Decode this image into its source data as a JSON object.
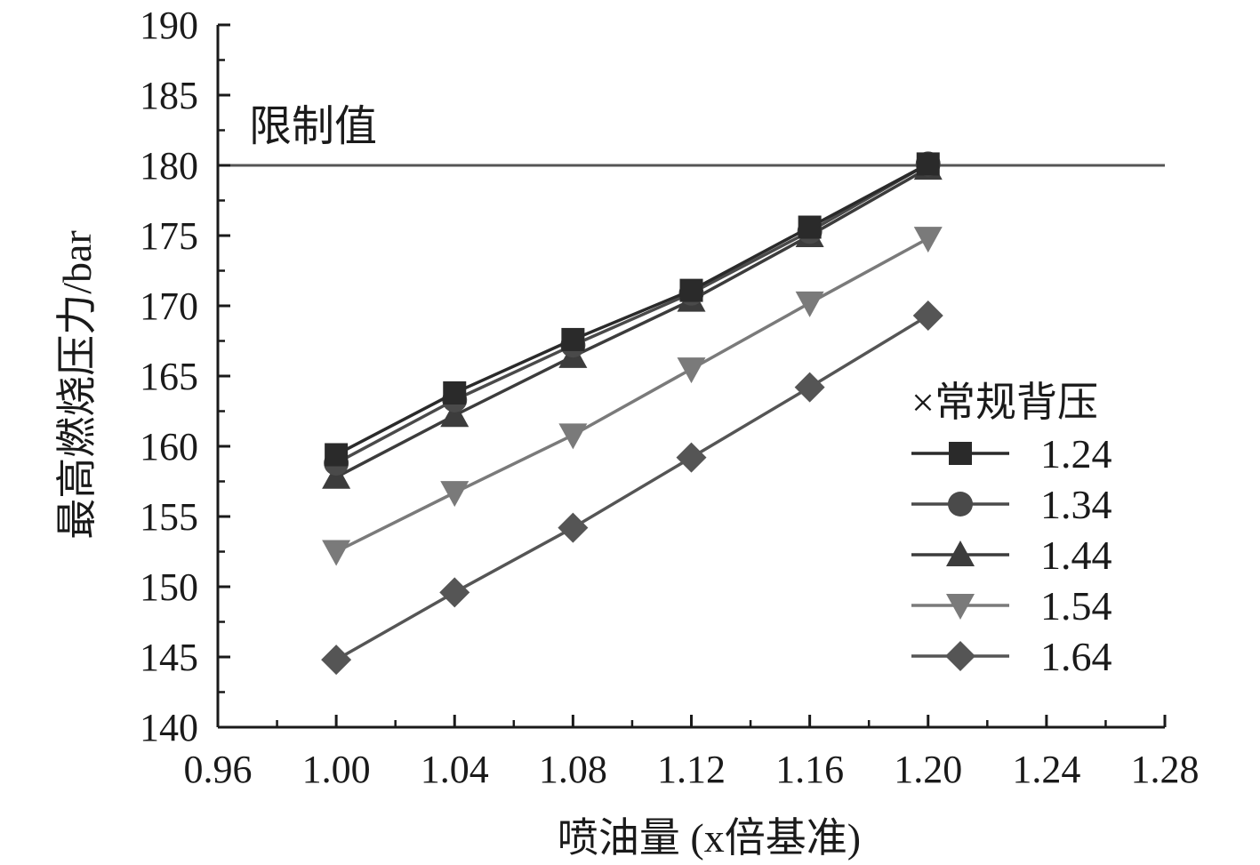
{
  "chart_data": {
    "type": "line",
    "xlabel": "喷油量 (x倍基准)",
    "ylabel": "最高燃烧压力/bar",
    "xlim": [
      0.96,
      1.28
    ],
    "ylim": [
      140,
      190
    ],
    "xticks": [
      "0.96",
      "1.00",
      "1.04",
      "1.08",
      "1.12",
      "1.16",
      "1.20",
      "1.24",
      "1.28"
    ],
    "yticks": [
      "140",
      "145",
      "150",
      "155",
      "160",
      "165",
      "170",
      "175",
      "180",
      "185",
      "190"
    ],
    "grid": false,
    "legend_title": "×常规背压",
    "legend_position": "right",
    "reference_line": {
      "y": 180,
      "label": "限制值",
      "color": "#555555"
    },
    "x": [
      1.0,
      1.04,
      1.08,
      1.12,
      1.16,
      1.2
    ],
    "series": [
      {
        "name": "1.24",
        "marker": "square",
        "color": "#2a2a2a",
        "values": [
          159.4,
          163.8,
          167.6,
          171.1,
          175.6,
          180.1
        ]
      },
      {
        "name": "1.34",
        "marker": "circle",
        "color": "#4a4a4a",
        "values": [
          158.8,
          163.3,
          167.2,
          170.9,
          175.3,
          180.1
        ]
      },
      {
        "name": "1.44",
        "marker": "triangle-up",
        "color": "#3c3c3c",
        "values": [
          157.8,
          162.2,
          166.4,
          170.4,
          175.0,
          179.8
        ]
      },
      {
        "name": "1.54",
        "marker": "triangle-down",
        "color": "#7a7a7a",
        "values": [
          152.5,
          156.7,
          160.8,
          165.5,
          170.2,
          174.8
        ]
      },
      {
        "name": "1.64",
        "marker": "diamond",
        "color": "#555555",
        "values": [
          144.8,
          149.6,
          154.2,
          159.2,
          164.2,
          169.3
        ]
      }
    ]
  }
}
